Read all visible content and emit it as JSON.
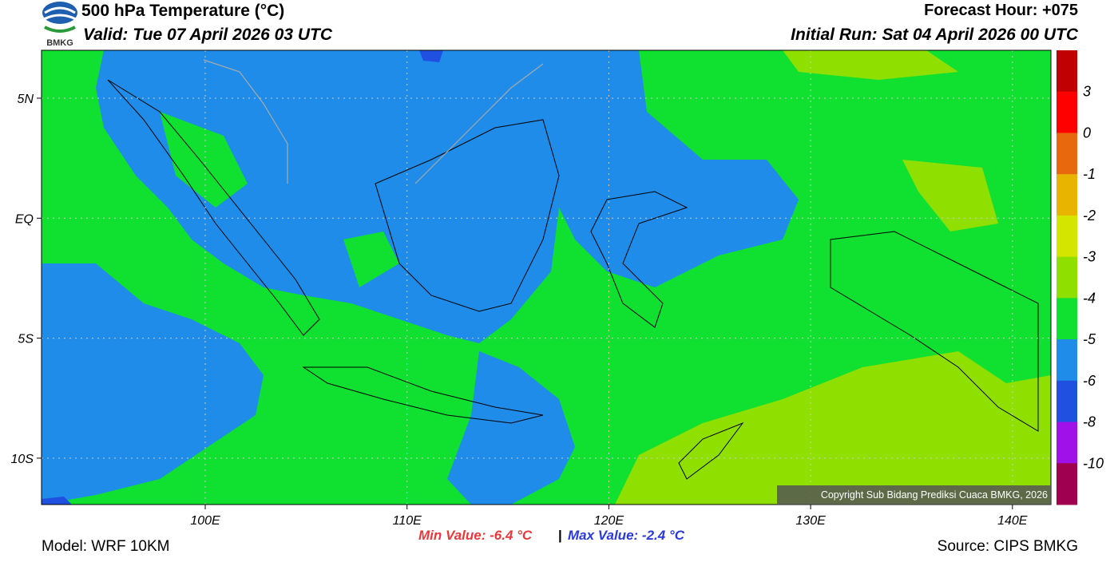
{
  "header": {
    "logo": "BMKG",
    "title": "500 hPa Temperature (°C)",
    "valid": "Valid: Tue 07 April 2026 03 UTC",
    "forecast_hour": "Forecast Hour: +075",
    "initial_run": "Initial Run: Sat 04 April 2026 00 UTC"
  },
  "map": {
    "lat_labels": [
      "5N",
      "EQ",
      "5S",
      "10S"
    ],
    "lon_labels": [
      "100E",
      "110E",
      "120E",
      "130E",
      "140E"
    ],
    "copyright": "Copyright Sub Bidang Prediksi Cuaca BMKG, 2026"
  },
  "colorbar": {
    "labels": [
      3,
      0,
      -1,
      -2,
      -3,
      -4,
      -5,
      -6,
      -8,
      -10
    ],
    "colors": [
      "#c00000",
      "#ff0000",
      "#e8680e",
      "#e8b400",
      "#d4e600",
      "#8fe000",
      "#10e030",
      "#1e8ce8",
      "#2050e0",
      "#a010e8",
      "#a00050"
    ]
  },
  "footer": {
    "model": "Model: WRF 10KM",
    "min": "Min Value: -6.4 °C",
    "separator": "|",
    "max": "Max Value: -2.4 °C",
    "source": "Source: CIPS BMKG"
  }
}
